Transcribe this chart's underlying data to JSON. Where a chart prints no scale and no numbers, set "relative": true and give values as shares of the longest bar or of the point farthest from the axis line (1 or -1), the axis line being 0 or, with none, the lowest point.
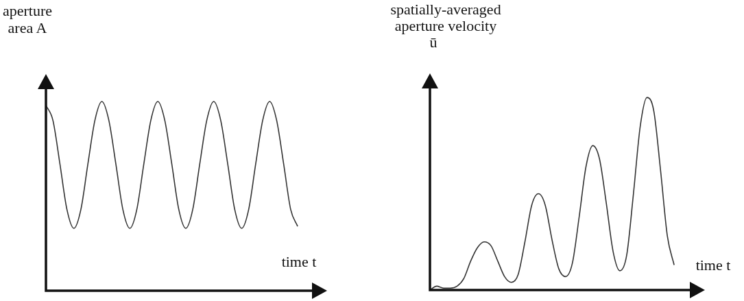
{
  "chart_data": [
    {
      "type": "line",
      "relative": true,
      "xlabel": "time t",
      "ylabel": "aperture\narea A",
      "color": "#333333",
      "categories": [
        null,
        null,
        null,
        null,
        null,
        null,
        null,
        null,
        null,
        null,
        null,
        null,
        null,
        null,
        null,
        null,
        null,
        null,
        null,
        null,
        null,
        null,
        null,
        null,
        null,
        null,
        null,
        null,
        null,
        null,
        null,
        null,
        null,
        null,
        null,
        null,
        null
      ],
      "values": [
        0.98,
        0.9,
        0.67,
        0.43,
        0.33,
        0.43,
        0.67,
        0.9,
        1,
        0.9,
        0.67,
        0.43,
        0.33,
        0.43,
        0.67,
        0.9,
        1,
        0.9,
        0.67,
        0.43,
        0.33,
        0.43,
        0.67,
        0.9,
        1,
        0.9,
        0.67,
        0.43,
        0.33,
        0.43,
        0.67,
        0.9,
        1,
        0.9,
        0.67,
        0.43,
        0.34
      ]
    },
    {
      "type": "line",
      "relative": true,
      "xlabel": "time t",
      "ylabel": "spatially-averaged\naperture velocity\nū",
      "color": "#333333",
      "categories": [
        null,
        null,
        null,
        null,
        null,
        null,
        null,
        null,
        null,
        null,
        null,
        null,
        null,
        null,
        null,
        null,
        null,
        null,
        null,
        null,
        null,
        null,
        null,
        null,
        null,
        null,
        null,
        null,
        null,
        null,
        null,
        null,
        null,
        null,
        null,
        null,
        null
      ],
      "values": [
        0,
        0.02,
        0.01,
        0.01,
        0.02,
        0.06,
        0.15,
        0.22,
        0.25,
        0.23,
        0.15,
        0.07,
        0.04,
        0.08,
        0.25,
        0.44,
        0.5,
        0.44,
        0.26,
        0.11,
        0.07,
        0.14,
        0.38,
        0.64,
        0.75,
        0.68,
        0.45,
        0.2,
        0.1,
        0.18,
        0.5,
        0.85,
        1,
        0.93,
        0.62,
        0.28,
        0.13
      ]
    }
  ]
}
